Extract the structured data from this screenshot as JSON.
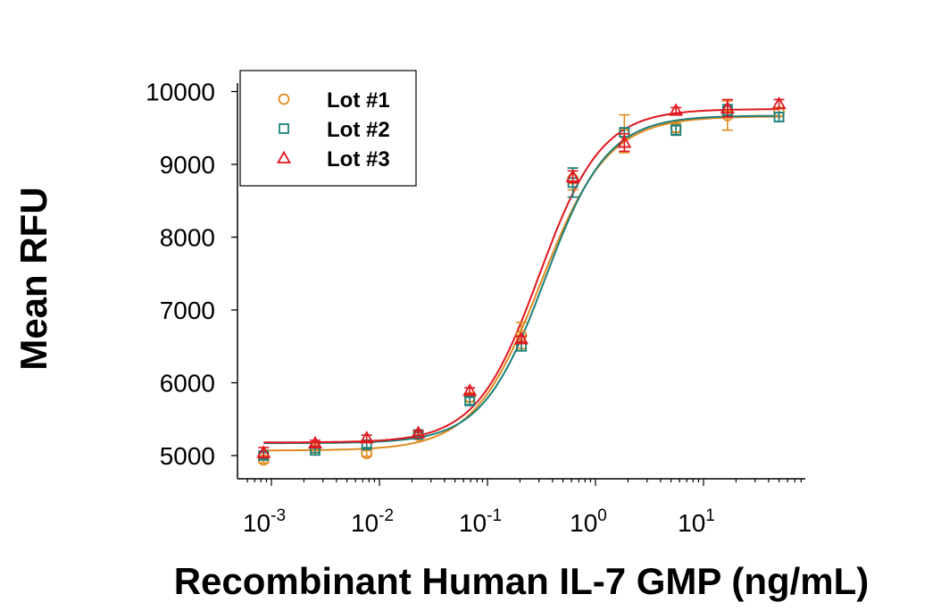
{
  "chart_data": {
    "type": "scatter",
    "title": "",
    "xlabel": "Recombinant Human IL-7 GMP (ng/mL)",
    "ylabel": "Mean RFU",
    "xscale": "log",
    "xlim": [
      0.00063,
      60
    ],
    "ylim": [
      4680,
      10130
    ],
    "x_ticks": [
      {
        "value": 0.001,
        "base": "10",
        "exp": "-3"
      },
      {
        "value": 0.01,
        "base": "10",
        "exp": "-2"
      },
      {
        "value": 0.1,
        "base": "10",
        "exp": "-1"
      },
      {
        "value": 1,
        "base": "10",
        "exp": "0"
      },
      {
        "value": 10,
        "base": "10",
        "exp": "1"
      }
    ],
    "y_ticks": [
      5000,
      6000,
      7000,
      8000,
      9000,
      10000
    ],
    "grid": false,
    "legend_position": "top-left",
    "x": [
      0.000847,
      0.00254,
      0.00762,
      0.0229,
      0.0686,
      0.206,
      0.617,
      1.85,
      5.56,
      16.67,
      50
    ],
    "series": [
      {
        "name": "Lot #1",
        "marker": "circle",
        "color": "#E08A1E",
        "values": [
          4940,
          5100,
          5030,
          5280,
          5800,
          6650,
          8800,
          9420,
          9500,
          9670,
          9720
        ],
        "errors": [
          40,
          30,
          40,
          30,
          60,
          180,
          150,
          260,
          60,
          200,
          60
        ],
        "fit": {
          "bottom": 5070,
          "top": 9660,
          "ec50": 0.31,
          "hill": 1.4
        }
      },
      {
        "name": "Lot #2",
        "marker": "square",
        "color": "#1B7F7A",
        "values": [
          5000,
          5070,
          5150,
          5290,
          5750,
          6500,
          8750,
          9440,
          9470,
          9740,
          9650
        ],
        "errors": [
          40,
          30,
          40,
          30,
          50,
          60,
          200,
          60,
          70,
          80,
          60
        ],
        "fit": {
          "bottom": 5170,
          "top": 9670,
          "ec50": 0.34,
          "hill": 1.5
        }
      },
      {
        "name": "Lot #3",
        "marker": "triangle",
        "color": "#E0161E",
        "values": [
          5040,
          5170,
          5240,
          5310,
          5890,
          6600,
          8830,
          9300,
          9740,
          9770,
          9830
        ],
        "errors": [
          70,
          40,
          40,
          30,
          40,
          40,
          80,
          120,
          40,
          120,
          60
        ],
        "fit": {
          "bottom": 5180,
          "top": 9760,
          "ec50": 0.3,
          "hill": 1.5
        }
      }
    ]
  }
}
